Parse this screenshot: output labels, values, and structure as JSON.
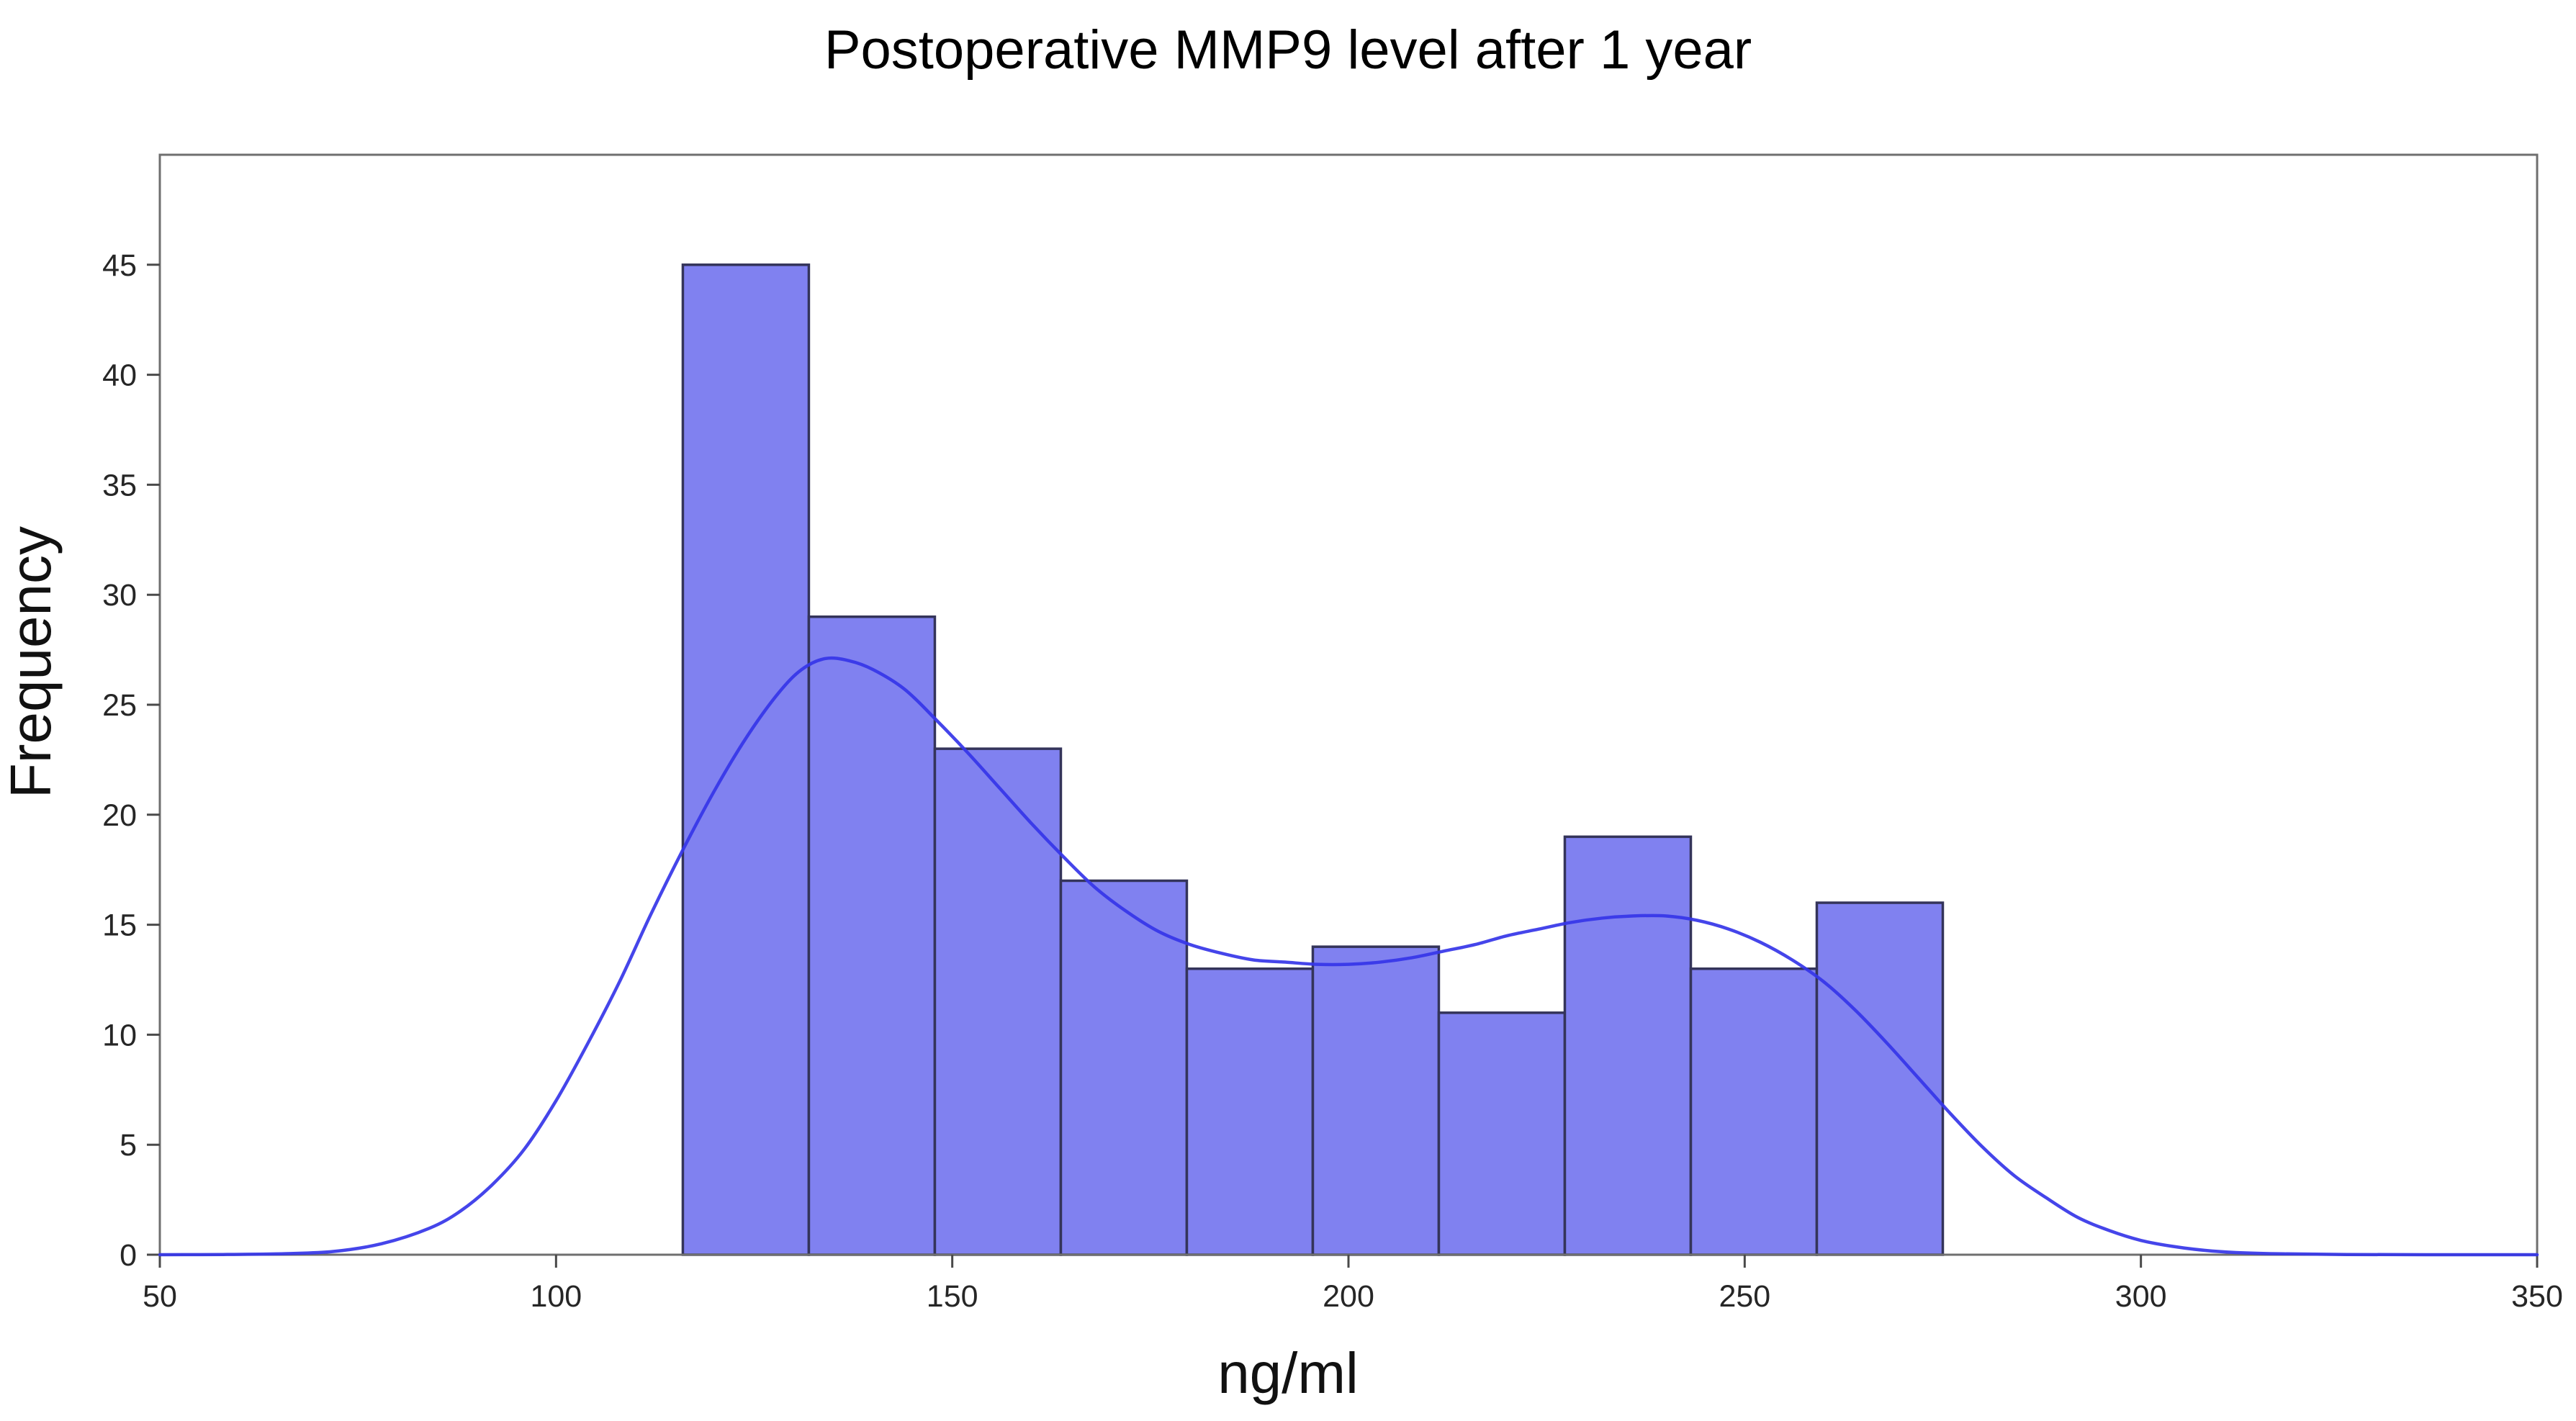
{
  "figure": {
    "title": "Postoperative MMP9 level after 1 year",
    "xlabel": "ng/ml",
    "ylabel": "Frequency"
  },
  "chart_data": {
    "type": "bar",
    "subtype": "histogram_with_kde",
    "title": "Postoperative MMP9 level after 1 year",
    "xlabel": "ng/ml",
    "ylabel": "Frequency",
    "xlim": [
      50,
      350
    ],
    "ylim": [
      0,
      50
    ],
    "x_ticks": [
      50,
      100,
      150,
      200,
      250,
      300,
      350
    ],
    "y_ticks": [
      0,
      5,
      10,
      15,
      20,
      25,
      30,
      35,
      40,
      45
    ],
    "grid": false,
    "legend_position": "none",
    "bin_edges": [
      116.0,
      131.9,
      147.8,
      163.7,
      179.6,
      195.5,
      211.4,
      227.3,
      243.2,
      259.1,
      275.0
    ],
    "frequencies": [
      45,
      29,
      23,
      17,
      13,
      14,
      11,
      19,
      13,
      16
    ],
    "kde_points": [
      [
        50,
        0.0
      ],
      [
        58,
        0.01
      ],
      [
        66,
        0.05
      ],
      [
        72,
        0.15
      ],
      [
        78,
        0.5
      ],
      [
        84,
        1.2
      ],
      [
        88,
        2.0
      ],
      [
        92,
        3.2
      ],
      [
        96,
        4.8
      ],
      [
        100,
        7.0
      ],
      [
        104,
        9.6
      ],
      [
        108,
        12.4
      ],
      [
        112,
        15.5
      ],
      [
        116,
        18.4
      ],
      [
        120,
        21.1
      ],
      [
        124,
        23.5
      ],
      [
        128,
        25.5
      ],
      [
        131,
        26.6
      ],
      [
        134,
        27.1
      ],
      [
        137,
        27.0
      ],
      [
        140,
        26.6
      ],
      [
        144,
        25.7
      ],
      [
        148,
        24.3
      ],
      [
        152,
        22.8
      ],
      [
        156,
        21.2
      ],
      [
        160,
        19.6
      ],
      [
        164,
        18.1
      ],
      [
        168,
        16.7
      ],
      [
        172,
        15.6
      ],
      [
        176,
        14.7
      ],
      [
        180,
        14.1
      ],
      [
        184,
        13.7
      ],
      [
        188,
        13.4
      ],
      [
        192,
        13.3
      ],
      [
        196,
        13.2
      ],
      [
        200,
        13.2
      ],
      [
        204,
        13.3
      ],
      [
        208,
        13.5
      ],
      [
        212,
        13.8
      ],
      [
        216,
        14.1
      ],
      [
        220,
        14.5
      ],
      [
        224,
        14.8
      ],
      [
        228,
        15.1
      ],
      [
        232,
        15.3
      ],
      [
        236,
        15.4
      ],
      [
        240,
        15.4
      ],
      [
        244,
        15.2
      ],
      [
        248,
        14.8
      ],
      [
        252,
        14.2
      ],
      [
        256,
        13.4
      ],
      [
        260,
        12.4
      ],
      [
        264,
        11.1
      ],
      [
        268,
        9.6
      ],
      [
        272,
        8.0
      ],
      [
        276,
        6.4
      ],
      [
        280,
        4.9
      ],
      [
        284,
        3.6
      ],
      [
        288,
        2.6
      ],
      [
        292,
        1.7
      ],
      [
        296,
        1.1
      ],
      [
        300,
        0.65
      ],
      [
        304,
        0.38
      ],
      [
        308,
        0.2
      ],
      [
        312,
        0.1
      ],
      [
        318,
        0.04
      ],
      [
        326,
        0.01
      ],
      [
        336,
        0.0
      ],
      [
        350,
        0.0
      ]
    ],
    "colors": {
      "bar_fill": "#8081f0",
      "bar_edge": "#34345a",
      "kde_line": "#3535e8",
      "frame": "#6f6f6f",
      "tick_mark": "#4a4a4a",
      "tick_label": "#262626",
      "title": "#000000",
      "background": "#ffffff"
    }
  }
}
